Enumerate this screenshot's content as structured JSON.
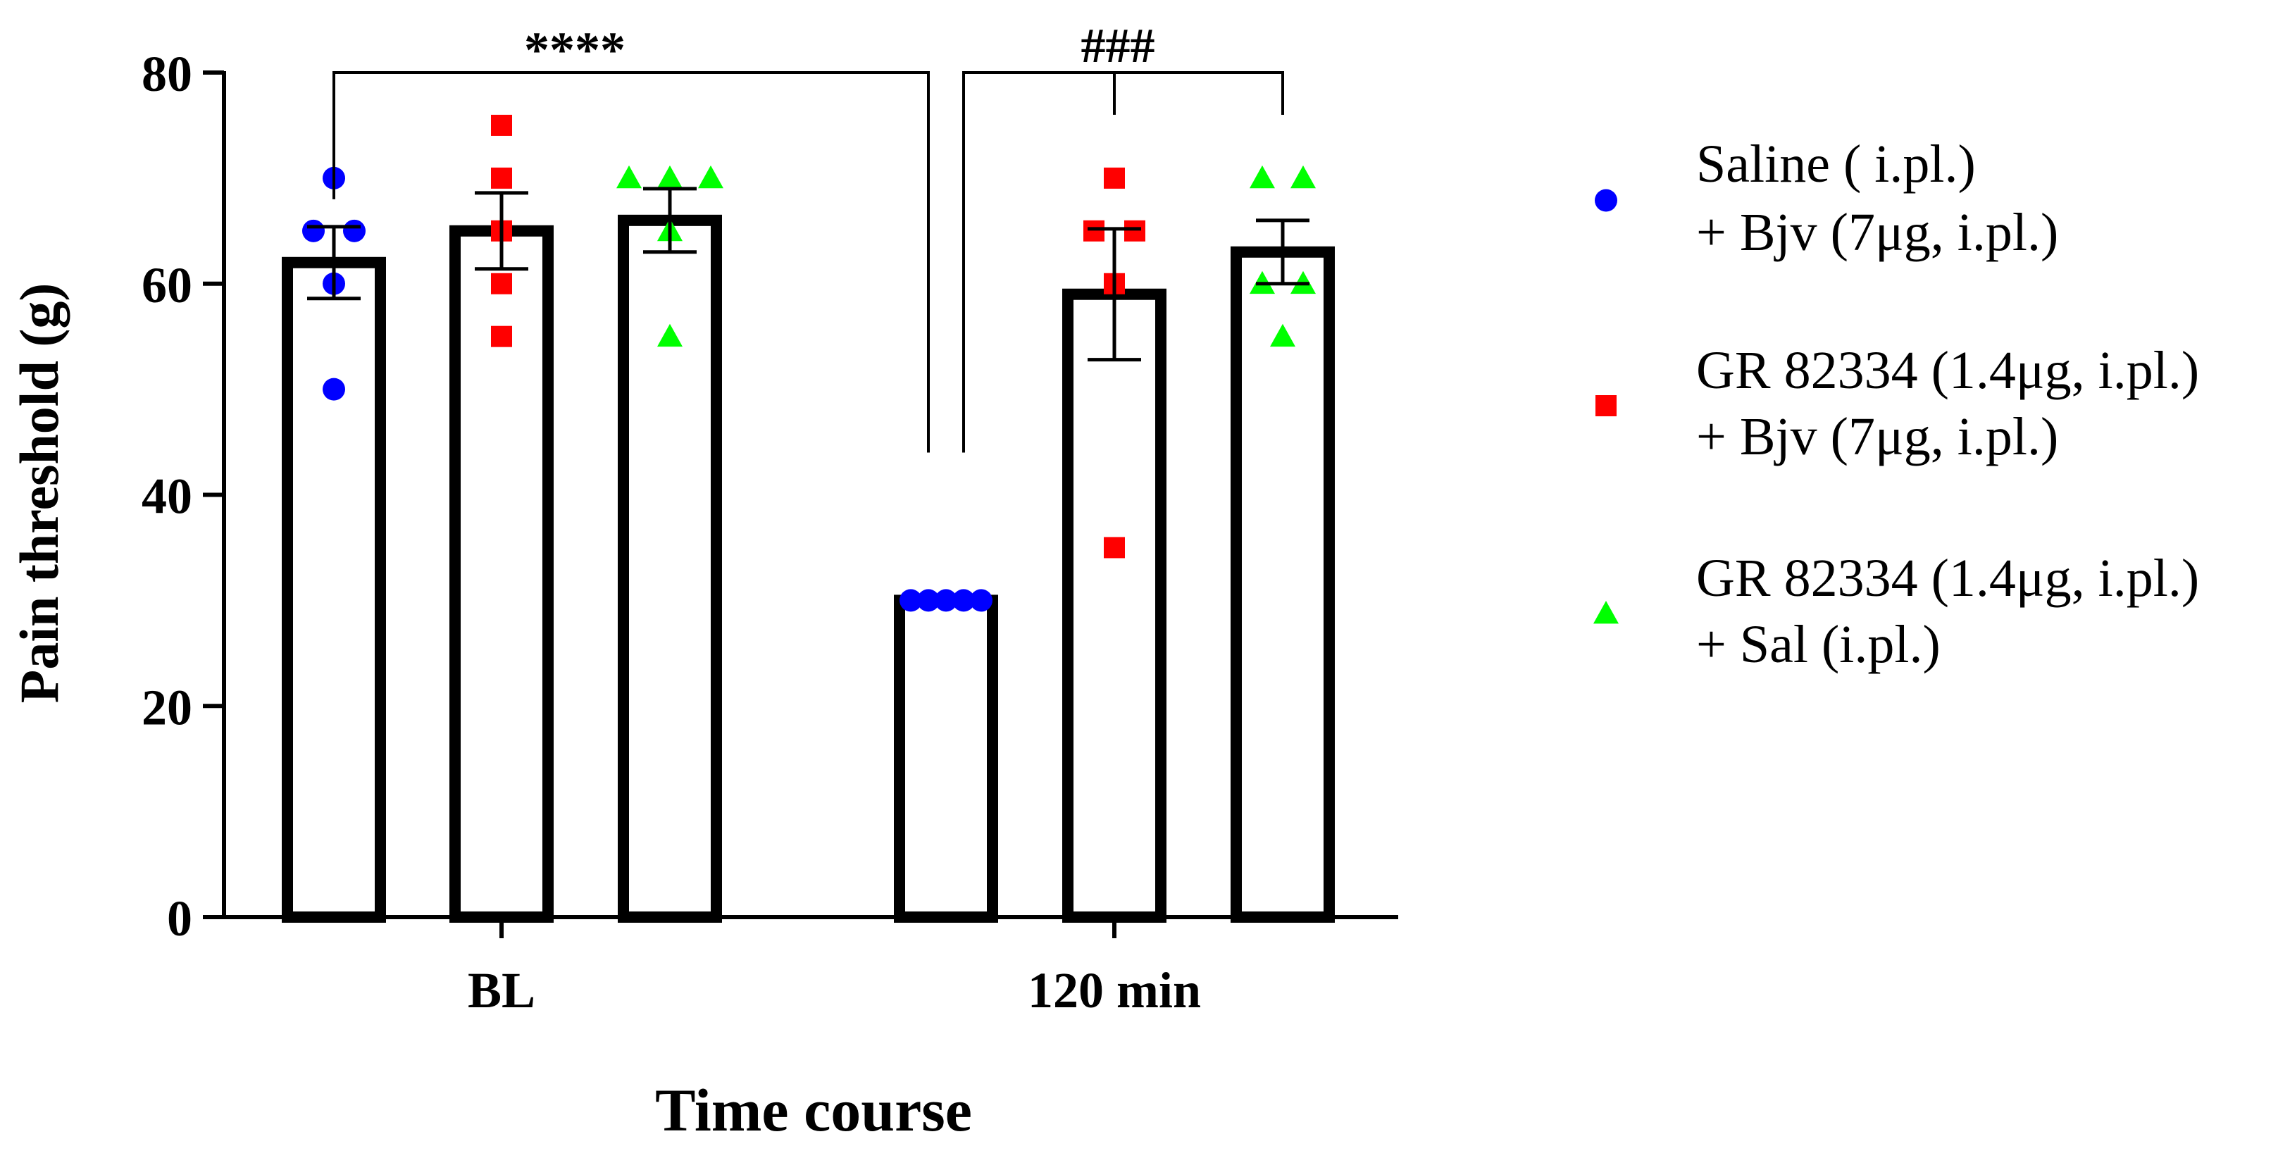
{
  "chart_data": {
    "type": "bar",
    "xlabel": "Time course",
    "ylabel": "Pain threshold (g)",
    "ylim": [
      0,
      80
    ],
    "yticks": [
      0,
      20,
      40,
      60,
      80
    ],
    "categories": [
      "BL",
      "120 min"
    ],
    "series": [
      {
        "name": "Saline ( i.pl.) + Bjv (7μg, i.pl.)",
        "legend_lines": [
          "Saline ( i.pl.)",
          "+ Bjv (7μg, i.pl.)"
        ],
        "color": "#0000ff",
        "marker": "circle",
        "means": [
          62,
          30
        ],
        "sem": [
          3.4,
          0
        ],
        "points": [
          [
            50,
            60,
            65,
            65,
            70
          ],
          [
            30,
            30,
            30,
            30,
            30
          ]
        ]
      },
      {
        "name": "GR 82334 (1.4μg, i.pl.) + Bjv (7μg, i.pl.)",
        "legend_lines": [
          "GR 82334 (1.4μg, i.pl.)",
          "+ Bjv (7μg, i.pl.)"
        ],
        "color": "#ff0000",
        "marker": "square",
        "means": [
          65,
          59
        ],
        "sem": [
          3.6,
          6.2
        ],
        "points": [
          [
            55,
            60,
            65,
            70,
            75
          ],
          [
            35,
            60,
            65,
            65,
            70
          ]
        ]
      },
      {
        "name": "GR 82334 (1.4μg, i.pl.) + Sal (i.pl.)",
        "legend_lines": [
          "GR 82334 (1.4μg, i.pl.)",
          "+ Sal (i.pl.)"
        ],
        "color": "#00ff00",
        "marker": "triangle",
        "means": [
          66,
          63
        ],
        "sem": [
          3.0,
          3.0
        ],
        "points": [
          [
            55,
            65,
            70,
            70,
            70
          ],
          [
            55,
            60,
            60,
            70,
            70
          ]
        ]
      }
    ],
    "annotations": [
      {
        "label": "****",
        "from": {
          "category": 0,
          "series": 0
        },
        "to": {
          "category": 1,
          "series": 0
        }
      },
      {
        "label": "###",
        "from": {
          "category": 1,
          "series": 0
        },
        "to": [
          {
            "category": 1,
            "series": 1
          },
          {
            "category": 1,
            "series": 2
          }
        ]
      }
    ],
    "legend_position": "right",
    "grid": false
  }
}
